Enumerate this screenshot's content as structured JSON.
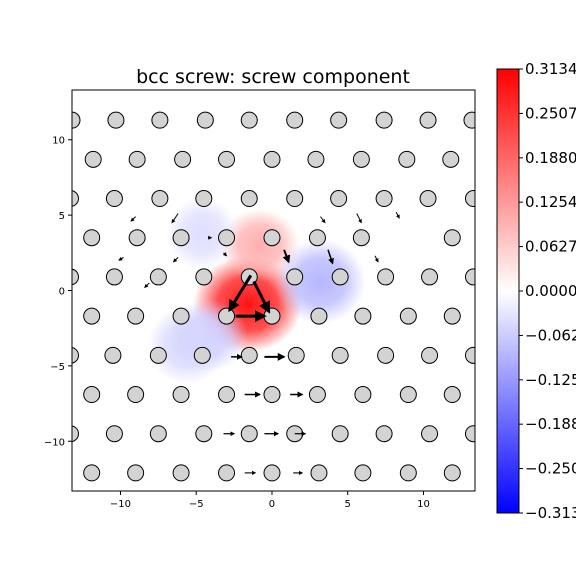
{
  "chart_data": {
    "type": "scatter",
    "title": "bcc screw: screw component",
    "xlabel": "",
    "ylabel": "",
    "xlim": [
      -13.2,
      13.4
    ],
    "ylim": [
      -13.3,
      13.3
    ],
    "xticks": [
      -10,
      -5,
      0,
      5,
      10
    ],
    "yticks": [
      10,
      5,
      0,
      -5,
      -10
    ],
    "grid": false,
    "colormap": "bwr",
    "colorbar": {
      "min": -0.3134,
      "max": 0.3134,
      "ticks": [
        0.3134,
        0.2507,
        0.188,
        0.1254,
        0.0627,
        0.0,
        -0.0627,
        -0.1254,
        -0.188,
        -0.2507,
        -0.3134
      ],
      "tick_labels": [
        "0.3134",
        "0.2507",
        "0.1880",
        "0.1254",
        "0.0627",
        "0.0000",
        "-0.0627",
        "-0.1254",
        "-0.1880",
        "-0.2507",
        "-0.3134"
      ]
    },
    "atom_color": "#d3d3d3",
    "atoms_rows": [
      {
        "y": 11.3,
        "x": [
          -13.2,
          -10.3,
          -7.4,
          -4.4,
          -1.5,
          1.5,
          4.4,
          7.4,
          10.3,
          13.2
        ]
      },
      {
        "y": 8.7,
        "x": [
          -11.8,
          -8.9,
          -5.9,
          -3.0,
          0.0,
          2.9,
          5.9,
          8.9,
          11.8
        ]
      },
      {
        "y": 6.1,
        "x": [
          -13.3,
          -10.4,
          -7.4,
          -4.5,
          -1.5,
          1.5,
          4.4,
          7.4,
          10.3,
          13.3
        ]
      },
      {
        "y": 3.5,
        "x": [
          -11.9,
          -8.9,
          -6.0,
          -3.0,
          0.0,
          3.0,
          5.9,
          11.9
        ]
      },
      {
        "y": 0.9,
        "x": [
          -13.3,
          -10.4,
          -7.5,
          -4.5,
          -1.5,
          1.5,
          4.5,
          7.5,
          10.4,
          13.3
        ]
      },
      {
        "y": -1.7,
        "x": [
          -11.9,
          -9.0,
          -6.0,
          -3.0,
          0.0,
          3.1,
          6.0,
          9.0,
          11.9
        ]
      },
      {
        "y": -4.3,
        "x": [
          -13.3,
          -10.5,
          -7.5,
          -4.6,
          -1.5,
          1.6,
          4.5,
          7.5,
          10.4,
          13.3
        ]
      },
      {
        "y": -6.9,
        "x": [
          -11.9,
          -9.0,
          -6.0,
          -3.0,
          0.0,
          3.0,
          6.0,
          9.0,
          11.9
        ]
      },
      {
        "y": -9.5,
        "x": [
          -13.3,
          -10.4,
          -7.5,
          -4.5,
          -1.5,
          1.5,
          4.5,
          7.4,
          10.4,
          13.3
        ]
      },
      {
        "y": -12.1,
        "x": [
          -11.9,
          -9.0,
          -6.0,
          -3.0,
          0.0,
          3.1,
          6.0,
          9.0,
          11.9
        ]
      }
    ],
    "heat_blobs": [
      {
        "x": -1.6,
        "y": -0.9,
        "value": 0.29,
        "rx": 3.6,
        "ry": 3.2
      },
      {
        "x": -0.8,
        "y": 3.0,
        "value": 0.1,
        "rx": 2.6,
        "ry": 2.4
      },
      {
        "x": -4.2,
        "y": -3.0,
        "value": -0.06,
        "rx": 2.6,
        "ry": 2.4
      },
      {
        "x": 3.2,
        "y": 0.6,
        "value": -0.09,
        "rx": 3.0,
        "ry": 2.8
      },
      {
        "x": -4.6,
        "y": 3.8,
        "value": -0.04,
        "rx": 2.4,
        "ry": 2.4
      },
      {
        "x": -5.6,
        "y": -3.6,
        "value": -0.05,
        "rx": 2.6,
        "ry": 2.6
      }
    ],
    "arrows": [
      {
        "x1": -1.4,
        "y1": 1.0,
        "x2": -2.8,
        "y2": -1.3,
        "w": 3
      },
      {
        "x1": -1.2,
        "y1": 0.6,
        "x2": -0.2,
        "y2": -1.4,
        "w": 3
      },
      {
        "x1": -2.4,
        "y1": -1.7,
        "x2": -0.5,
        "y2": -1.7,
        "w": 3
      },
      {
        "x1": 0.8,
        "y1": 2.7,
        "x2": 1.1,
        "y2": 1.9,
        "w": 2
      },
      {
        "x1": 3.7,
        "y1": 2.7,
        "x2": 4.0,
        "y2": 1.8,
        "w": 1.5
      },
      {
        "x1": 3.2,
        "y1": 4.9,
        "x2": 3.5,
        "y2": 4.5,
        "w": 1
      },
      {
        "x1": -4.2,
        "y1": 3.5,
        "x2": -4.0,
        "y2": 3.5,
        "w": 1
      },
      {
        "x1": -3.2,
        "y1": 2.5,
        "x2": -3.0,
        "y2": 2.3,
        "w": 1
      },
      {
        "x1": -2.7,
        "y1": -4.4,
        "x2": -2.0,
        "y2": -4.4,
        "w": 1.5
      },
      {
        "x1": -0.5,
        "y1": -4.4,
        "x2": 0.8,
        "y2": -4.4,
        "w": 2
      },
      {
        "x1": -1.8,
        "y1": -6.9,
        "x2": -0.8,
        "y2": -6.9,
        "w": 1.5
      },
      {
        "x1": 1.2,
        "y1": -6.9,
        "x2": 2.0,
        "y2": -6.9,
        "w": 1.5
      },
      {
        "x1": -3.2,
        "y1": -9.5,
        "x2": -2.5,
        "y2": -9.5,
        "w": 1.2
      },
      {
        "x1": -0.5,
        "y1": -9.5,
        "x2": 0.4,
        "y2": -9.5,
        "w": 1.3
      },
      {
        "x1": 1.5,
        "y1": -9.5,
        "x2": 2.2,
        "y2": -9.5,
        "w": 1.2
      },
      {
        "x1": -1.8,
        "y1": -12.1,
        "x2": -1.1,
        "y2": -12.1,
        "w": 1.1
      },
      {
        "x1": 1.4,
        "y1": -12.1,
        "x2": 2.0,
        "y2": -12.1,
        "w": 1.1
      },
      {
        "x1": -6.2,
        "y1": 5.1,
        "x2": -6.6,
        "y2": 4.5,
        "w": 1
      },
      {
        "x1": 5.6,
        "y1": 5.1,
        "x2": 5.9,
        "y2": 4.5,
        "w": 1
      },
      {
        "x1": 8.2,
        "y1": 5.2,
        "x2": 8.4,
        "y2": 4.8,
        "w": 1
      },
      {
        "x1": -9.0,
        "y1": 4.9,
        "x2": -9.3,
        "y2": 4.6,
        "w": 1
      },
      {
        "x1": -9.8,
        "y1": 2.2,
        "x2": -10.1,
        "y2": 2.0,
        "w": 1
      },
      {
        "x1": -6.2,
        "y1": 2.2,
        "x2": -6.5,
        "y2": 1.9,
        "w": 1
      },
      {
        "x1": 6.8,
        "y1": 2.3,
        "x2": 7.0,
        "y2": 1.9,
        "w": 1
      },
      {
        "x1": -8.1,
        "y1": 0.5,
        "x2": -8.4,
        "y2": 0.2,
        "w": 1
      }
    ]
  }
}
